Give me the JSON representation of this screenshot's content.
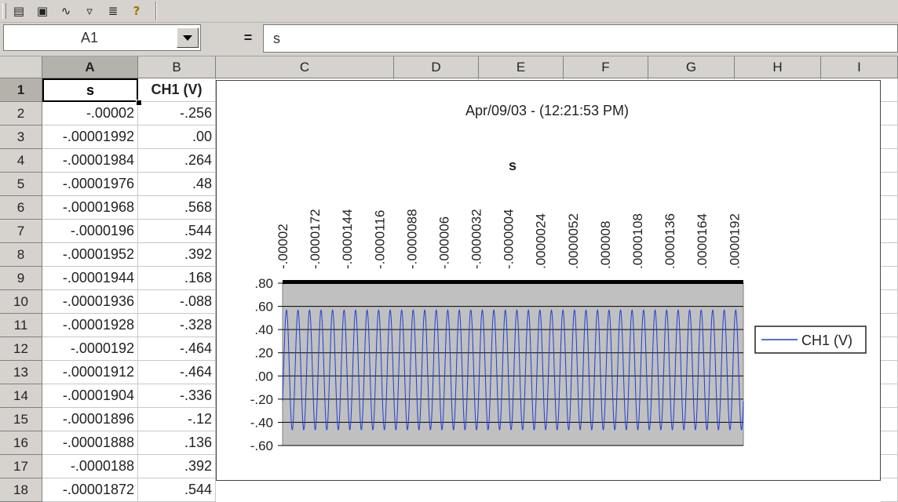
{
  "toolbar": {
    "buttons": [
      {
        "icon": "chart-wizard-icon",
        "glyph": "▤"
      },
      {
        "icon": "chart-options-icon",
        "glyph": "▣"
      },
      {
        "icon": "curve-fit-icon",
        "glyph": "∿"
      },
      {
        "icon": "filter-icon",
        "glyph": "▿"
      },
      {
        "icon": "statistics-icon",
        "glyph": "≣"
      },
      {
        "icon": "help-icon",
        "glyph": "?"
      }
    ]
  },
  "formula_bar": {
    "name_box": "A1",
    "equals": "=",
    "content": "s"
  },
  "columns": [
    "A",
    "B",
    "C",
    "D",
    "E",
    "F",
    "G",
    "H",
    "I"
  ],
  "rows": [
    {
      "n": "1",
      "a": "s",
      "b": "CH1 (V)"
    },
    {
      "n": "2",
      "a": "-.00002",
      "b": "-.256"
    },
    {
      "n": "3",
      "a": "-.00001992",
      "b": ".00"
    },
    {
      "n": "4",
      "a": "-.00001984",
      "b": ".264"
    },
    {
      "n": "5",
      "a": "-.00001976",
      "b": ".48"
    },
    {
      "n": "6",
      "a": "-.00001968",
      "b": ".568"
    },
    {
      "n": "7",
      "a": "-.0000196",
      "b": ".544"
    },
    {
      "n": "8",
      "a": "-.00001952",
      "b": ".392"
    },
    {
      "n": "9",
      "a": "-.00001944",
      "b": ".168"
    },
    {
      "n": "10",
      "a": "-.00001936",
      "b": "-.088"
    },
    {
      "n": "11",
      "a": "-.00001928",
      "b": "-.328"
    },
    {
      "n": "12",
      "a": "-.0000192",
      "b": "-.464"
    },
    {
      "n": "13",
      "a": "-.00001912",
      "b": "-.464"
    },
    {
      "n": "14",
      "a": "-.00001904",
      "b": "-.336"
    },
    {
      "n": "15",
      "a": "-.00001896",
      "b": "-.12"
    },
    {
      "n": "16",
      "a": "-.00001888",
      "b": ".136"
    },
    {
      "n": "17",
      "a": "-.0000188",
      "b": ".392"
    },
    {
      "n": "18",
      "a": "-.00001872",
      "b": ".544"
    }
  ],
  "chart_data": {
    "type": "line",
    "title": "Apr/09/03 - (12:21:53 PM)",
    "xlabel": "s",
    "ylabel": "",
    "x_tick_labels": [
      "-.00002",
      "-.0000172",
      "-.0000144",
      "-.0000116",
      "-.0000088",
      "-.000006",
      "-.0000032",
      "-.0000004",
      ".0000024",
      ".0000052",
      ".000008",
      ".0000108",
      ".0000136",
      ".0000164",
      ".0000192"
    ],
    "xlim": [
      -2e-05,
      2e-05
    ],
    "x_axis_position": "top",
    "y_tick_labels": [
      ".80",
      ".60",
      ".40",
      ".20",
      ".00",
      "-.20",
      "-.40",
      "-.60"
    ],
    "ylim": [
      -0.6,
      0.8
    ],
    "grid": true,
    "legend_position": "right",
    "series": [
      {
        "name": "CH1 (V)",
        "color": "#1f3fd6",
        "x_step": 8e-08,
        "points_shown": 501,
        "sample_values": [
          -0.256,
          0.0,
          0.264,
          0.48,
          0.568,
          0.544,
          0.392,
          0.168,
          -0.088,
          -0.328,
          -0.464,
          -0.464,
          -0.336,
          -0.12,
          0.136,
          0.392,
          0.544
        ],
        "cycles_visible": 40
      }
    ],
    "plot_background": "#c0c0c0"
  }
}
